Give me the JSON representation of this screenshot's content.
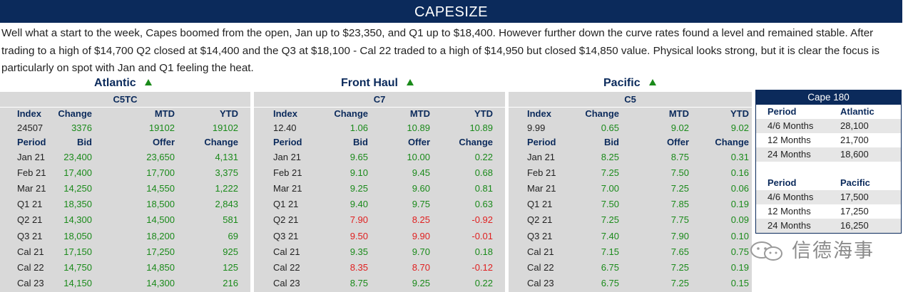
{
  "banner": {
    "title": "CAPESIZE"
  },
  "commentary": "Well what a start to the week, Capes boomed from the open, Jan up to $23,350, and Q1 up to $18,400. However further down the curve rates found a level and remained stable. After trading to a high of $14,700 Q2 closed at $14,400 and the Q3 at $18,100 - Cal 22 traded to a high of $14,950 but closed $14,850 value. Physical looks strong, but it is clear the focus is particularly on spot with Jan and Q1 feeling the heat.",
  "sections": [
    {
      "region": "Atlantic",
      "trend_icon": "up-triangle-icon",
      "route": "C5TC",
      "index_headers": [
        "Index",
        "Change",
        "MTD",
        "YTD"
      ],
      "index_values": [
        "24507",
        "3376",
        "19102",
        "19102"
      ],
      "period_headers": [
        "Period",
        "Bid",
        "Offer",
        "Change"
      ],
      "rows": [
        [
          "Jan 21",
          "23,400",
          "23,650",
          "4,131"
        ],
        [
          "Feb 21",
          "17,400",
          "17,700",
          "3,375"
        ],
        [
          "Mar 21",
          "14,250",
          "14,550",
          "1,222"
        ],
        [
          "Q1 21",
          "18,350",
          "18,500",
          "2,843"
        ],
        [
          "Q2 21",
          "14,300",
          "14,500",
          "581"
        ],
        [
          "Q3 21",
          "18,050",
          "18,200",
          "69"
        ],
        [
          "Cal 21",
          "17,150",
          "17,250",
          "925"
        ],
        [
          "Cal 22",
          "14,750",
          "14,850",
          "125"
        ],
        [
          "Cal 23",
          "14,150",
          "14,300",
          "216"
        ]
      ],
      "negative_rows": []
    },
    {
      "region": "Front Haul",
      "trend_icon": "up-triangle-icon",
      "route": "C7",
      "index_headers": [
        "Index",
        "Change",
        "MTD",
        "YTD"
      ],
      "index_values": [
        "12.40",
        "1.06",
        "10.89",
        "10.89"
      ],
      "period_headers": [
        "Period",
        "Bid",
        "Offer",
        "Change"
      ],
      "rows": [
        [
          "Jan 21",
          "9.65",
          "10.00",
          "0.22"
        ],
        [
          "Feb 21",
          "9.10",
          "9.45",
          "0.68"
        ],
        [
          "Mar 21",
          "9.25",
          "9.60",
          "0.81"
        ],
        [
          "Q1 21",
          "9.40",
          "9.75",
          "0.63"
        ],
        [
          "Q2 21",
          "7.90",
          "8.25",
          "-0.92"
        ],
        [
          "Q3 21",
          "9.50",
          "9.90",
          "-0.01"
        ],
        [
          "Cal 21",
          "9.35",
          "9.70",
          "0.18"
        ],
        [
          "Cal 22",
          "8.35",
          "8.70",
          "-0.12"
        ],
        [
          "Cal 23",
          "8.75",
          "9.25",
          "0.22"
        ]
      ],
      "negative_rows": [
        4,
        5,
        7
      ]
    },
    {
      "region": "Pacific",
      "trend_icon": "up-triangle-icon",
      "route": "C5",
      "index_headers": [
        "Index",
        "Change",
        "MTD",
        "YTD"
      ],
      "index_values": [
        "9.99",
        "0.65",
        "9.02",
        "9.02"
      ],
      "period_headers": [
        "Period",
        "Bid",
        "Offer",
        "Change"
      ],
      "rows": [
        [
          "Jan 21",
          "8.25",
          "8.75",
          "0.31"
        ],
        [
          "Feb 21",
          "7.25",
          "7.50",
          "0.16"
        ],
        [
          "Mar 21",
          "7.00",
          "7.25",
          "0.06"
        ],
        [
          "Q1 21",
          "7.50",
          "7.85",
          "0.19"
        ],
        [
          "Q2 21",
          "7.25",
          "7.75",
          "0.09"
        ],
        [
          "Q3 21",
          "7.40",
          "7.90",
          "0.10"
        ],
        [
          "Cal 21",
          "7.15",
          "7.65",
          "0.75"
        ],
        [
          "Cal 22",
          "6.75",
          "7.25",
          "0.19"
        ],
        [
          "Cal 23",
          "6.75",
          "7.25",
          "0.15"
        ]
      ],
      "negative_rows": []
    }
  ],
  "cape180": {
    "title": "Cape 180",
    "atlantic": {
      "headers": [
        "Period",
        "Atlantic"
      ],
      "rows": [
        [
          "4/6 Months",
          "28,100"
        ],
        [
          "12 Months",
          "21,700"
        ],
        [
          "24 Months",
          "18,600"
        ]
      ]
    },
    "pacific": {
      "headers": [
        "Period",
        "Pacific"
      ],
      "rows": [
        [
          "4/6 Months",
          "17,500"
        ],
        [
          "12 Months",
          "17,250"
        ],
        [
          "24 Months",
          "16,250"
        ]
      ]
    }
  },
  "watermark": {
    "icon": "wechat-icon",
    "text": "信德海事"
  },
  "colors": {
    "navy": "#0b2a5b",
    "positive": "#1a8a1a",
    "negative": "#e02020",
    "panel": "#d9d9d9"
  }
}
